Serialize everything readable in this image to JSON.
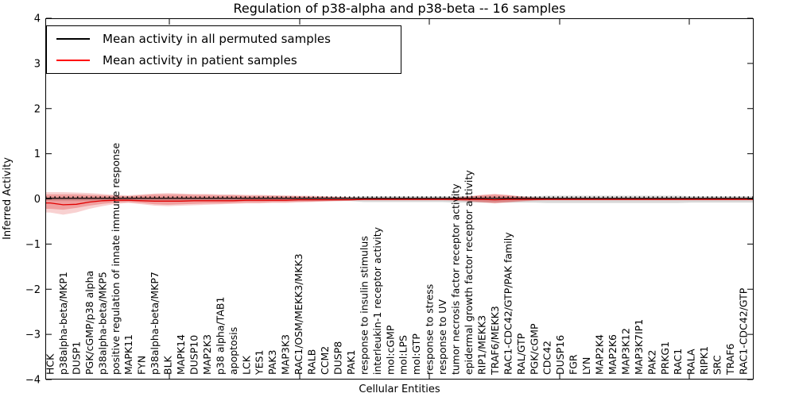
{
  "chart_data": {
    "type": "line",
    "title": "Regulation of p38-alpha and p38-beta -- 16 samples",
    "xlabel": "Cellular Entities",
    "ylabel": "Inferred Activity",
    "ylim": [
      -4,
      4
    ],
    "ytick_labels": [
      "4",
      "3",
      "2",
      "1",
      "0",
      "−1",
      "−2",
      "−3",
      "−4"
    ],
    "grid": false,
    "legend_position": "upper left",
    "legend": [
      {
        "label": "Mean activity in all permuted samples",
        "color": "#000000"
      },
      {
        "label": "Mean activity in patient samples",
        "color": "#ff0000"
      }
    ],
    "categories": [
      "HCK",
      "p38alpha-beta/MKP1",
      "DUSP1",
      "PGK/cGMP/p38 alpha",
      "p38alpha-beta/MKP5",
      "positive regulation of innate immune response",
      "MAPK11",
      "FYN",
      "p38alpha-beta/MKP7",
      "BLK",
      "MAPK14",
      "DUSP10",
      "MAP2K3",
      "p38 alpha/TAB1",
      "apoptosis",
      "LCK",
      "YES1",
      "PAK3",
      "MAP3K3",
      "RAC1/OSM/MEKK3/MKK3",
      "RALB",
      "CCM2",
      "DUSP8",
      "PAK1",
      "response to insulin stimulus",
      "interleukin-1 receptor activity",
      "mol:cGMP",
      "mol:LPS",
      "mol:GTP",
      "response to stress",
      "response to UV",
      "tumor necrosis factor receptor activity",
      "epidermal growth factor receptor activity",
      "RIP1/MEKK3",
      "TRAF6/MEKK3",
      "RAC1-CDC42/GTP/PAK family",
      "RAL/GTP",
      "PGK/cGMP",
      "CDC42",
      "DUSP16",
      "FGR",
      "LYN",
      "MAP2K4",
      "MAP2K6",
      "MAP3K12",
      "MAP3K7IP1",
      "PAK2",
      "PRKG1",
      "RAC1",
      "RALA",
      "RIPK1",
      "SRC",
      "TRAF6",
      "RAC1-CDC42/GTP"
    ],
    "series": [
      {
        "name": "Mean activity in all permuted samples",
        "color": "#000000",
        "style": "solid-with-dotted-guide",
        "dotted_guide_y": 0.04,
        "values": [
          0.01,
          0.01,
          0.01,
          0.01,
          0.01,
          0.01,
          0.01,
          0.01,
          0.01,
          0.01,
          0.01,
          0.01,
          0.01,
          0.01,
          0.01,
          0.01,
          0.01,
          0.01,
          0.01,
          0.01,
          0.01,
          0.01,
          0.01,
          0.01,
          0.01,
          0.01,
          0.01,
          0.01,
          0.01,
          0.01,
          0.01,
          0.01,
          0.01,
          0.01,
          0.01,
          0.01,
          0.01,
          0.01,
          0.01,
          0.01,
          0.01,
          0.01,
          0.01,
          0.01,
          0.01,
          0.01,
          0.01,
          0.01,
          0.01,
          0.01,
          0.01,
          0.01,
          0.01,
          0.01
        ]
      },
      {
        "name": "Mean activity in patient samples",
        "color": "#e00000",
        "style": "solid",
        "values": [
          -0.09,
          -0.13,
          -0.12,
          -0.07,
          -0.04,
          -0.03,
          -0.03,
          -0.04,
          -0.05,
          -0.05,
          -0.05,
          -0.04,
          -0.04,
          -0.04,
          -0.04,
          -0.03,
          -0.03,
          -0.03,
          -0.03,
          -0.02,
          -0.02,
          -0.02,
          -0.02,
          -0.02,
          -0.01,
          -0.01,
          -0.01,
          -0.01,
          -0.01,
          -0.01,
          -0.01,
          -0.01,
          -0.01,
          -0.01,
          -0.02,
          -0.01,
          -0.01,
          -0.01,
          -0.01,
          -0.01,
          -0.01,
          -0.01,
          -0.01,
          -0.01,
          -0.01,
          -0.01,
          -0.01,
          -0.01,
          -0.01,
          -0.01,
          -0.01,
          -0.01,
          -0.01,
          -0.01
        ]
      }
    ],
    "bands": [
      {
        "name": "permuted-samples-std",
        "color": "#999999",
        "opacity": 0.38,
        "upper": [
          0.05,
          0.05,
          0.05,
          0.05,
          0.05,
          0.05,
          0.05,
          0.05,
          0.05,
          0.05,
          0.05,
          0.05,
          0.05,
          0.05,
          0.05,
          0.05,
          0.05,
          0.05,
          0.05,
          0.05,
          0.05,
          0.05,
          0.05,
          0.05,
          0.06,
          0.06,
          0.06,
          0.06,
          0.06,
          0.06,
          0.06,
          0.06,
          0.06,
          0.06,
          0.06,
          0.06,
          0.06,
          0.06,
          0.07,
          0.07,
          0.07,
          0.07,
          0.07,
          0.07,
          0.07,
          0.07,
          0.07,
          0.07,
          0.07,
          0.06,
          0.06,
          0.06,
          0.06,
          0.06
        ],
        "lower": [
          -0.05,
          -0.05,
          -0.05,
          -0.05,
          -0.05,
          -0.05,
          -0.05,
          -0.05,
          -0.05,
          -0.05,
          -0.05,
          -0.05,
          -0.05,
          -0.05,
          -0.05,
          -0.05,
          -0.05,
          -0.05,
          -0.05,
          -0.05,
          -0.05,
          -0.05,
          -0.05,
          -0.05,
          -0.07,
          -0.07,
          -0.07,
          -0.07,
          -0.07,
          -0.07,
          -0.07,
          -0.08,
          -0.08,
          -0.08,
          -0.08,
          -0.08,
          -0.08,
          -0.08,
          -0.09,
          -0.09,
          -0.09,
          -0.09,
          -0.09,
          -0.09,
          -0.09,
          -0.09,
          -0.09,
          -0.09,
          -0.09,
          -0.08,
          -0.08,
          -0.08,
          -0.08,
          -0.08
        ]
      },
      {
        "name": "patient-samples-std-outer",
        "color": "#dd2c2c",
        "opacity": 0.22,
        "upper": [
          0.15,
          0.15,
          0.14,
          0.13,
          0.11,
          0.09,
          0.08,
          0.1,
          0.12,
          0.13,
          0.12,
          0.11,
          0.11,
          0.1,
          0.1,
          0.09,
          0.09,
          0.08,
          0.08,
          0.07,
          0.07,
          0.06,
          0.05,
          0.04,
          0.03,
          0.03,
          0.03,
          0.03,
          0.03,
          0.03,
          0.03,
          0.04,
          0.06,
          0.09,
          0.11,
          0.09,
          0.06,
          0.04,
          0.03,
          0.03,
          0.03,
          0.03,
          0.03,
          0.03,
          0.03,
          0.03,
          0.03,
          0.03,
          0.03,
          0.03,
          0.03,
          0.03,
          0.03,
          0.03
        ],
        "lower": [
          -0.3,
          -0.35,
          -0.3,
          -0.22,
          -0.16,
          -0.11,
          -0.09,
          -0.12,
          -0.15,
          -0.16,
          -0.15,
          -0.14,
          -0.13,
          -0.12,
          -0.11,
          -0.1,
          -0.1,
          -0.09,
          -0.09,
          -0.08,
          -0.07,
          -0.06,
          -0.05,
          -0.04,
          -0.03,
          -0.03,
          -0.03,
          -0.03,
          -0.03,
          -0.03,
          -0.03,
          -0.04,
          -0.06,
          -0.08,
          -0.1,
          -0.08,
          -0.06,
          -0.04,
          -0.03,
          -0.03,
          -0.03,
          -0.03,
          -0.03,
          -0.03,
          -0.03,
          -0.03,
          -0.03,
          -0.03,
          -0.03,
          -0.03,
          -0.03,
          -0.03,
          -0.03,
          -0.03
        ]
      },
      {
        "name": "patient-samples-std-inner",
        "color": "#dd2c2c",
        "opacity": 0.3,
        "upper": [
          0.1,
          0.1,
          0.1,
          0.09,
          0.08,
          0.07,
          0.06,
          0.08,
          0.1,
          0.1,
          0.1,
          0.09,
          0.09,
          0.08,
          0.08,
          0.07,
          0.07,
          0.07,
          0.06,
          0.06,
          0.05,
          0.05,
          0.04,
          0.03,
          0.02,
          0.02,
          0.02,
          0.02,
          0.02,
          0.02,
          0.02,
          0.03,
          0.05,
          0.08,
          0.1,
          0.08,
          0.05,
          0.03,
          0.02,
          0.02,
          0.02,
          0.02,
          0.02,
          0.02,
          0.02,
          0.02,
          0.02,
          0.02,
          0.02,
          0.02,
          0.02,
          0.02,
          0.02,
          0.02
        ],
        "lower": [
          -0.22,
          -0.24,
          -0.2,
          -0.15,
          -0.11,
          -0.08,
          -0.07,
          -0.09,
          -0.12,
          -0.13,
          -0.12,
          -0.11,
          -0.1,
          -0.1,
          -0.09,
          -0.08,
          -0.08,
          -0.07,
          -0.07,
          -0.06,
          -0.06,
          -0.05,
          -0.04,
          -0.03,
          -0.02,
          -0.02,
          -0.02,
          -0.02,
          -0.02,
          -0.02,
          -0.02,
          -0.03,
          -0.05,
          -0.07,
          -0.09,
          -0.07,
          -0.05,
          -0.03,
          -0.02,
          -0.02,
          -0.02,
          -0.02,
          -0.02,
          -0.02,
          -0.02,
          -0.02,
          -0.02,
          -0.02,
          -0.02,
          -0.02,
          -0.02,
          -0.02,
          -0.02,
          -0.02
        ]
      }
    ]
  }
}
